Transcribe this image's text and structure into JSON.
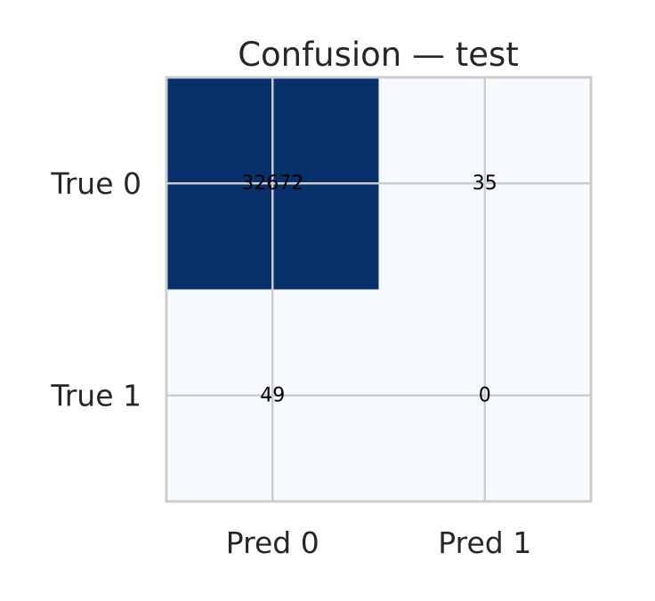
{
  "chart_data": {
    "type": "heatmap",
    "title": "Confusion — test",
    "xlabel": "",
    "ylabel": "",
    "x_categories": [
      "Pred 0",
      "Pred 1"
    ],
    "y_categories": [
      "True 0",
      "True 1"
    ],
    "values": [
      [
        32672,
        35
      ],
      [
        49,
        0
      ]
    ],
    "colormap": "Blues",
    "colors": {
      "max": "#08306b",
      "min": "#f7fbff",
      "grid": "#cccccc",
      "text": "#262626",
      "cell_text": "#000000"
    },
    "grid": true,
    "legend": "none"
  }
}
